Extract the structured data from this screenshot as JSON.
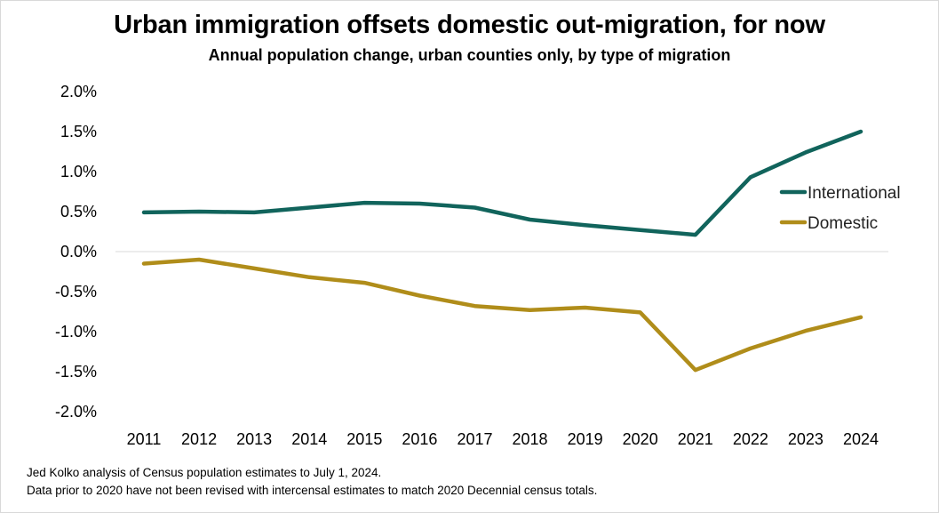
{
  "title": "Urban immigration offsets domestic out-migration, for now",
  "subtitle": "Annual population change, urban counties only, by type of migration",
  "notes": [
    "Jed Kolko analysis of Census population estimates to July 1, 2024.",
    "Data prior to 2020 have not been revised with intercensal estimates to match 2020 Decennial census totals."
  ],
  "colors": {
    "international": "#11645c",
    "domestic": "#b08d1a",
    "zero_line": "#d9d9d9"
  },
  "chart_data": {
    "type": "line",
    "x": [
      "2011",
      "2012",
      "2013",
      "2014",
      "2015",
      "2016",
      "2017",
      "2018",
      "2019",
      "2020",
      "2021",
      "2022",
      "2023",
      "2024"
    ],
    "series": [
      {
        "name": "International",
        "values": [
          0.49,
          0.5,
          0.49,
          0.55,
          0.61,
          0.6,
          0.55,
          0.4,
          0.33,
          0.27,
          0.21,
          0.93,
          1.24,
          1.5
        ]
      },
      {
        "name": "Domestic",
        "values": [
          -0.15,
          -0.1,
          -0.21,
          -0.32,
          -0.39,
          -0.55,
          -0.68,
          -0.73,
          -0.7,
          -0.76,
          -1.48,
          -1.21,
          -0.99,
          -0.82
        ]
      }
    ],
    "yticks": [
      "2.0%",
      "1.5%",
      "1.0%",
      "0.5%",
      "0.0%",
      "-0.5%",
      "-1.0%",
      "-1.5%",
      "-2.0%"
    ],
    "ylim": [
      -2.0,
      2.0
    ],
    "grid": false,
    "legend_position": "right",
    "xlabel": "",
    "ylabel": ""
  }
}
